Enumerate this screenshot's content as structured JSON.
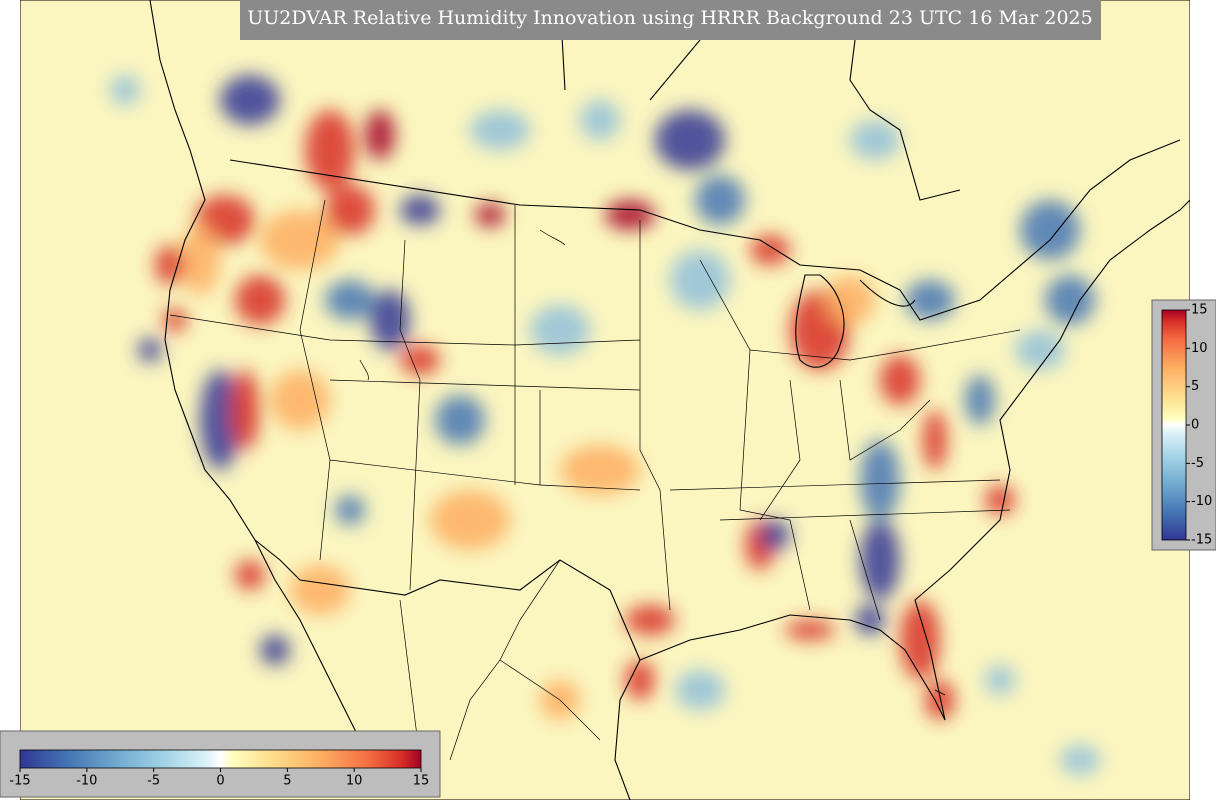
{
  "title": "UU2DVAR Relative Humidity Innovation using HRRR Background 23 UTC 16 Mar 2025",
  "colorbar_horizontal": {
    "ticks": [
      -15,
      -10,
      -5,
      0,
      5,
      10,
      15
    ]
  },
  "colorbar_vertical": {
    "ticks": [
      15,
      10,
      5,
      0,
      -5,
      -10,
      -15
    ]
  }
}
